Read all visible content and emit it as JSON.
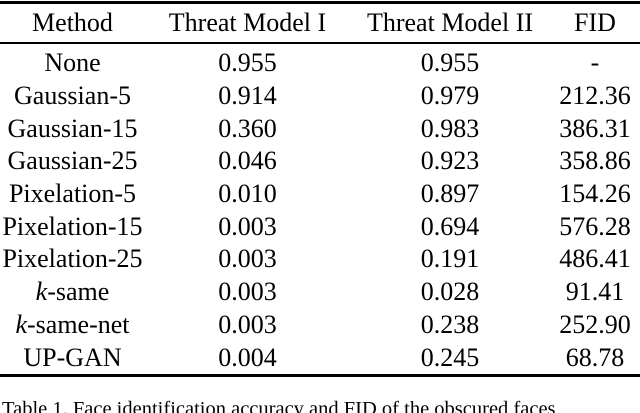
{
  "table": {
    "headers": [
      "Method",
      "Threat Model I",
      "Threat Model II",
      "FID"
    ],
    "rows": [
      {
        "method": "None",
        "italic_k": false,
        "tm1": "0.955",
        "tm2": "0.955",
        "fid": "-"
      },
      {
        "method": "Gaussian-5",
        "italic_k": false,
        "tm1": "0.914",
        "tm2": "0.979",
        "fid": "212.36"
      },
      {
        "method": "Gaussian-15",
        "italic_k": false,
        "tm1": "0.360",
        "tm2": "0.983",
        "fid": "386.31"
      },
      {
        "method": "Gaussian-25",
        "italic_k": false,
        "tm1": "0.046",
        "tm2": "0.923",
        "fid": "358.86"
      },
      {
        "method": "Pixelation-5",
        "italic_k": false,
        "tm1": "0.010",
        "tm2": "0.897",
        "fid": "154.26"
      },
      {
        "method": "Pixelation-15",
        "italic_k": false,
        "tm1": "0.003",
        "tm2": "0.694",
        "fid": "576.28"
      },
      {
        "method": "Pixelation-25",
        "italic_k": false,
        "tm1": "0.003",
        "tm2": "0.191",
        "fid": "486.41"
      },
      {
        "method": "k-same",
        "italic_k": true,
        "tm1": "0.003",
        "tm2": "0.028",
        "fid": "91.41"
      },
      {
        "method": "k-same-net",
        "italic_k": true,
        "tm1": "0.003",
        "tm2": "0.238",
        "fid": "252.90"
      },
      {
        "method": "UP-GAN",
        "italic_k": false,
        "tm1": "0.004",
        "tm2": "0.245",
        "fid": "68.78"
      }
    ]
  },
  "caption": {
    "text": "Table 1. Face identification accuracy and FID of the obscured faces"
  }
}
